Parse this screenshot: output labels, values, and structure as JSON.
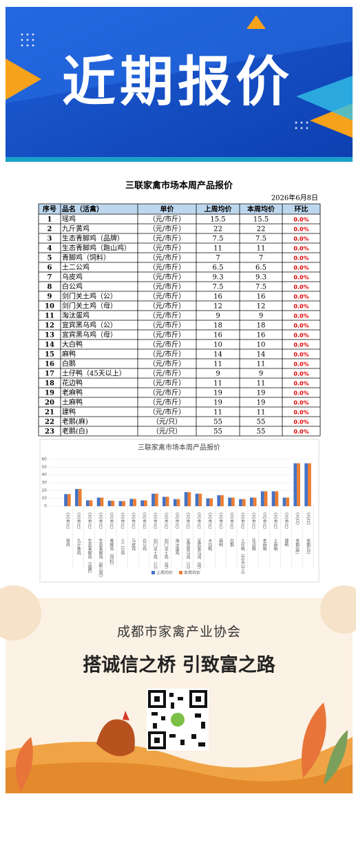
{
  "banner": {
    "title": "近期报价"
  },
  "table": {
    "title": "三联家禽市场本周产品报价",
    "date": "2026年6月8日",
    "header": [
      "序号",
      "品名（活禽）",
      "单价",
      "上周均价",
      "本周均价",
      "环比"
    ],
    "rows": [
      [
        "1",
        "瑶鸡",
        "（元/市斤）",
        "15.5",
        "15.5",
        "0.0%"
      ],
      [
        "2",
        "九斤黄鸡",
        "（元/市斤）",
        "22",
        "22",
        "0.0%"
      ],
      [
        "3",
        "生态青脚鸡（品牌）",
        "（元/市斤）",
        "7.5",
        "7.5",
        "0.0%"
      ],
      [
        "4",
        "生态青脚鸡（跑山鸡）",
        "（元/市斤）",
        "11",
        "11",
        "0.0%"
      ],
      [
        "5",
        "青脚鸡（饲料）",
        "（元/市斤）",
        "7",
        "7",
        "0.0%"
      ],
      [
        "6",
        "土二公鸡",
        "（元/市斤）",
        "6.5",
        "6.5",
        "0.0%"
      ],
      [
        "7",
        "乌皮鸡",
        "（元/市斤）",
        "9.3",
        "9.3",
        "0.0%"
      ],
      [
        "8",
        "白公鸡",
        "（元/市斤）",
        "7.5",
        "7.5",
        "0.0%"
      ],
      [
        "9",
        "剑门关土鸡（公）",
        "（元/市斤）",
        "16",
        "16",
        "0.0%"
      ],
      [
        "10",
        "剑门关土鸡（母）",
        "（元/市斤）",
        "12",
        "12",
        "0.0%"
      ],
      [
        "11",
        "淘汰蛋鸡",
        "（元/市斤）",
        "9",
        "9",
        "0.0%"
      ],
      [
        "12",
        "宜宾黑乌鸡（公）",
        "（元/市斤）",
        "18",
        "18",
        "0.0%"
      ],
      [
        "13",
        "宜宾黑乌鸡（母）",
        "（元/市斤）",
        "16",
        "16",
        "0.0%"
      ],
      [
        "14",
        "大白鸭",
        "（元/市斤）",
        "10",
        "10",
        "0.0%"
      ],
      [
        "15",
        "麻鸭",
        "（元/市斤）",
        "14",
        "14",
        "0.0%"
      ],
      [
        "16",
        "白鹅",
        "（元/市斤）",
        "11",
        "11",
        "0.0%"
      ],
      [
        "17",
        "土仔鸭（45天以上）",
        "（元/市斤）",
        "9",
        "9",
        "0.0%"
      ],
      [
        "18",
        "花边鸭",
        "（元/市斤）",
        "11",
        "11",
        "0.0%"
      ],
      [
        "19",
        "老麻鸭",
        "（元/市斤）",
        "19",
        "19",
        "0.0%"
      ],
      [
        "20",
        "土麻鸭",
        "（元/市斤）",
        "19",
        "19",
        "0.0%"
      ],
      [
        "21",
        "建鸭",
        "（元/市斤）",
        "11",
        "11",
        "0.0%"
      ],
      [
        "22",
        "老鹅(麻)",
        "（元/只）",
        "55",
        "55",
        "0.0%"
      ],
      [
        "23",
        "老鹅(白)",
        "（元/只）",
        "55",
        "55",
        "0.0%"
      ]
    ]
  },
  "chart_data": {
    "type": "bar",
    "title": "三联家禽市场本周产品报价",
    "categories": [
      "瑶鸡",
      "九斤黄鸡",
      "生态青脚鸡（品牌）",
      "生态青脚鸡（跑山鸡）",
      "青脚鸡（饲料）",
      "土二公鸡",
      "乌皮鸡",
      "白公鸡",
      "剑门关土鸡（公）",
      "剑门关土鸡（母）",
      "淘汰蛋鸡",
      "宜宾黑乌鸡（公）",
      "宜宾黑乌鸡（母）",
      "大白鸭",
      "麻鸭",
      "白鹅",
      "土仔鸭（45天以上）",
      "花边鸭",
      "老麻鸭",
      "土麻鸭",
      "建鸭",
      "老鹅(麻)",
      "老鹅(白)"
    ],
    "category_units": [
      "（元/市斤）",
      "（元/市斤）",
      "（元/市斤）",
      "（元/市斤）",
      "（元/市斤）",
      "（元/市斤）",
      "（元/市斤）",
      "（元/市斤）",
      "（元/市斤）",
      "（元/市斤）",
      "（元/市斤）",
      "（元/市斤）",
      "（元/市斤）",
      "（元/市斤）",
      "（元/市斤）",
      "（元/市斤）",
      "（元/市斤）",
      "（元/市斤）",
      "（元/市斤）",
      "（元/市斤）",
      "（元/市斤）",
      "（元/只）",
      "（元/只）"
    ],
    "series": [
      {
        "name": "上周均价",
        "color": "#4472c4",
        "values": [
          15.5,
          22,
          7.5,
          11,
          7,
          6.5,
          9.3,
          7.5,
          16,
          12,
          9,
          18,
          16,
          10,
          14,
          11,
          9,
          11,
          19,
          19,
          11,
          55,
          55
        ]
      },
      {
        "name": "本周均价",
        "color": "#ed7d31",
        "values": [
          15.5,
          22,
          7.5,
          11,
          7,
          6.5,
          9.3,
          7.5,
          16,
          12,
          9,
          18,
          16,
          10,
          14,
          11,
          9,
          11,
          19,
          19,
          11,
          55,
          55
        ]
      }
    ],
    "ylim": [
      0,
      60
    ],
    "yticks": [
      0,
      10,
      20,
      30,
      40,
      50,
      60
    ],
    "grid": true,
    "legend": "bottom"
  },
  "poster": {
    "org": "成都市家禽产业协会",
    "slogan": "搭诚信之桥 引致富之路"
  }
}
